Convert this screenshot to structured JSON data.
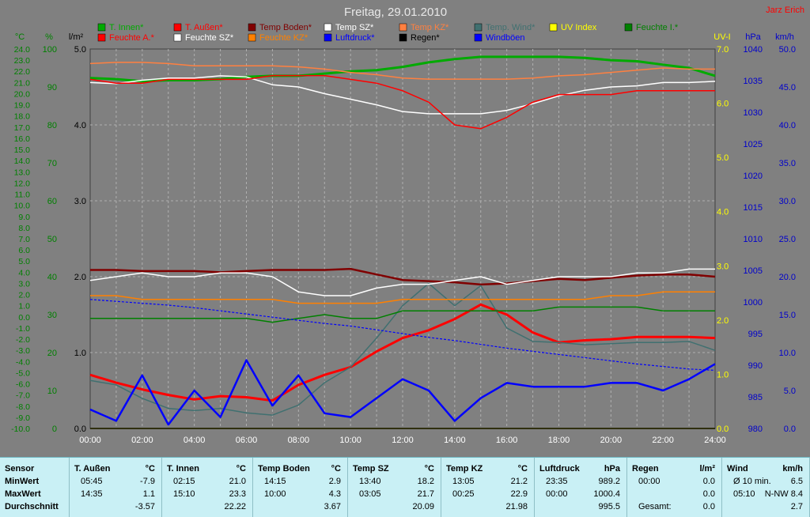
{
  "title": "Freitag, 29.01.2010",
  "author": "Jarz Erich",
  "colors": {
    "t_innen": "#00aa00",
    "t_aussen": "#ff0000",
    "temp_boden": "#800000",
    "temp_sz": "#ffffff",
    "temp_kz": "#ff8040",
    "temp_wind": "#407070",
    "uv_index": "#ffff00",
    "feuchte_i": "#008000",
    "feuchte_a": "#ff0000",
    "feuchte_sz": "#ffffff",
    "feuchte_kz": "#ff8000",
    "luftdruck": "#0000ff",
    "regen": "#000000",
    "windboeen": "#0000ff"
  },
  "legend": [
    {
      "label": "T. Innen*",
      "color": "#00aa00"
    },
    {
      "label": "T. Außen*",
      "color": "#ff0000"
    },
    {
      "label": "Temp Boden*",
      "color": "#800000"
    },
    {
      "label": "Temp SZ*",
      "color": "#ffffff"
    },
    {
      "label": "Temp KZ*",
      "color": "#ff8040"
    },
    {
      "label": "Temp. Wind*",
      "color": "#407070"
    },
    {
      "label": "UV Index",
      "color": "#ffff00"
    },
    {
      "label": "Feuchte I.*",
      "color": "#008000"
    },
    {
      "label": "Feuchte A.*",
      "color": "#ff0000"
    },
    {
      "label": "Feuchte SZ*",
      "color": "#ffffff"
    },
    {
      "label": "Feuchte KZ*",
      "color": "#ff8000"
    },
    {
      "label": "Luftdruck*",
      "color": "#0000ff"
    },
    {
      "label": "Regen*",
      "color": "#000000"
    },
    {
      "label": "Windböen",
      "color": "#0000ff"
    }
  ],
  "chart_data": {
    "type": "line",
    "title": "Freitag, 29.01.2010",
    "x": [
      "00:00",
      "01:00",
      "02:00",
      "03:00",
      "04:00",
      "05:00",
      "06:00",
      "07:00",
      "08:00",
      "09:00",
      "10:00",
      "11:00",
      "12:00",
      "13:00",
      "14:00",
      "15:00",
      "16:00",
      "17:00",
      "18:00",
      "19:00",
      "20:00",
      "21:00",
      "22:00",
      "23:00",
      "24:00"
    ],
    "x_ticks": [
      "00:00",
      "02:00",
      "04:00",
      "06:00",
      "08:00",
      "10:00",
      "12:00",
      "14:00",
      "16:00",
      "18:00",
      "20:00",
      "22:00",
      "24:00"
    ],
    "axes": {
      "temp": {
        "label": "°C",
        "range": [
          -10,
          24
        ],
        "ticks": [
          "24.0",
          "23.0",
          "22.0",
          "21.0",
          "20.0",
          "19.0",
          "18.0",
          "17.0",
          "16.0",
          "15.0",
          "14.0",
          "13.0",
          "12.0",
          "11.0",
          "10.0",
          "9.0",
          "8.0",
          "7.0",
          "6.0",
          "5.0",
          "4.0",
          "3.0",
          "2.0",
          "1.0",
          "0.0",
          "-1.0",
          "-2.0",
          "-3.0",
          "-4.0",
          "-5.0",
          "-6.0",
          "-7.0",
          "-8.0",
          "-9.0",
          "-10.0"
        ]
      },
      "humidity": {
        "label": "%",
        "range": [
          0,
          100
        ],
        "ticks": [
          "100",
          "90",
          "80",
          "70",
          "60",
          "50",
          "40",
          "30",
          "20",
          "10",
          "0"
        ]
      },
      "rain": {
        "label": "l/m²",
        "range": [
          0,
          5
        ],
        "ticks": [
          "5.0",
          "4.0",
          "3.0",
          "2.0",
          "1.0",
          "0.0"
        ]
      },
      "uv": {
        "label": "UV-I",
        "range": [
          0,
          7
        ],
        "ticks": [
          "7.0",
          "6.0",
          "5.0",
          "4.0",
          "3.0",
          "2.0",
          "1.0",
          "0.0"
        ]
      },
      "pressure": {
        "label": "hPa",
        "range": [
          980,
          1040
        ],
        "ticks": [
          "1040",
          "1035",
          "1030",
          "1025",
          "1020",
          "1015",
          "1010",
          "1005",
          "1000",
          "995",
          "990",
          "985",
          "980"
        ]
      },
      "wind": {
        "label": "km/h",
        "range": [
          0,
          50
        ],
        "ticks": [
          "50.0",
          "45.0",
          "40.0",
          "35.0",
          "30.0",
          "25.0",
          "20.0",
          "15.0",
          "10.0",
          "5.0",
          "0.0"
        ]
      }
    },
    "series": [
      {
        "name": "T. Innen*",
        "axis": "temp",
        "color": "#00aa00",
        "values": [
          21.4,
          21.3,
          21.1,
          21.2,
          21.2,
          21.3,
          21.5,
          21.6,
          21.6,
          21.8,
          22.0,
          22.1,
          22.4,
          22.8,
          23.1,
          23.3,
          23.3,
          23.3,
          23.3,
          23.2,
          23.0,
          22.9,
          22.6,
          22.3,
          21.6
        ]
      },
      {
        "name": "T. Außen*",
        "axis": "temp",
        "color": "#ff0000",
        "values": [
          -5.2,
          -5.9,
          -6.5,
          -7.0,
          -7.4,
          -7.1,
          -7.2,
          -7.5,
          -6.1,
          -5.2,
          -4.5,
          -3.1,
          -1.9,
          -1.2,
          -0.2,
          1.1,
          0.2,
          -1.4,
          -2.3,
          -2.1,
          -2.0,
          -1.8,
          -1.8,
          -1.8,
          -1.9
        ]
      },
      {
        "name": "Temp Boden*",
        "axis": "temp",
        "color": "#800000",
        "values": [
          4.2,
          4.2,
          4.1,
          4.1,
          4.1,
          4.0,
          4.1,
          4.2,
          4.2,
          4.2,
          4.3,
          3.8,
          3.3,
          3.2,
          3.1,
          2.9,
          3.0,
          3.2,
          3.4,
          3.3,
          3.5,
          3.7,
          3.8,
          3.8,
          3.6
        ]
      },
      {
        "name": "Temp SZ*",
        "axis": "temp",
        "color": "#ffffff",
        "values": [
          21.0,
          20.9,
          21.2,
          21.4,
          21.4,
          21.6,
          21.5,
          20.8,
          20.6,
          20.0,
          19.5,
          19.0,
          18.4,
          18.2,
          18.2,
          18.2,
          18.5,
          19.1,
          19.8,
          20.3,
          20.6,
          20.7,
          21.0,
          21.0,
          21.1
        ]
      },
      {
        "name": "Temp KZ*",
        "axis": "temp",
        "color": "#ff8040",
        "values": [
          22.7,
          22.8,
          22.8,
          22.7,
          22.5,
          22.5,
          22.5,
          22.5,
          22.4,
          22.2,
          21.9,
          21.7,
          21.4,
          21.3,
          21.3,
          21.3,
          21.3,
          21.4,
          21.6,
          21.7,
          21.9,
          22.1,
          22.3,
          22.2,
          22.2
        ]
      },
      {
        "name": "Temp. Wind*",
        "axis": "temp",
        "color": "#407070",
        "values": [
          -5.7,
          -6.1,
          -7.3,
          -8.2,
          -8.4,
          -8.2,
          -8.6,
          -8.8,
          -7.9,
          -5.9,
          -4.5,
          -1.9,
          1.0,
          3.0,
          1.0,
          2.8,
          -1.0,
          -2.2,
          -2.3,
          -2.5,
          -2.4,
          -2.3,
          -2.3,
          -2.2,
          -3.0
        ]
      },
      {
        "name": "UV Index",
        "axis": "uv",
        "color": "#ffff00",
        "values": [
          0,
          0,
          0,
          0,
          0,
          0,
          0,
          0,
          0,
          0,
          0,
          0,
          0,
          0,
          0,
          0,
          0,
          0,
          0,
          0,
          0,
          0,
          0,
          0,
          0
        ]
      },
      {
        "name": "Feuchte I.*",
        "axis": "humidity",
        "color": "#008000",
        "values": [
          29,
          29,
          29,
          29,
          29,
          29,
          29,
          28,
          29,
          30,
          29,
          29,
          31,
          31,
          31,
          31,
          31,
          31,
          32,
          32,
          32,
          32,
          31,
          31,
          31
        ]
      },
      {
        "name": "Feuchte A.*",
        "axis": "humidity",
        "color": "#ff0000",
        "values": [
          92,
          91,
          91,
          92,
          92,
          92,
          92,
          93,
          93,
          93,
          92,
          91,
          89,
          86,
          80,
          79,
          82,
          86,
          88,
          88,
          88,
          89,
          89,
          89,
          89
        ]
      },
      {
        "name": "Feuchte SZ*",
        "axis": "humidity",
        "color": "#ffffff",
        "values": [
          39,
          40,
          41,
          40,
          40,
          41,
          41,
          40,
          36,
          35,
          35,
          37,
          38,
          38,
          39,
          40,
          38,
          39,
          40,
          40,
          40,
          41,
          41,
          42,
          42
        ]
      },
      {
        "name": "Feuchte KZ*",
        "axis": "humidity",
        "color": "#ff8000",
        "values": [
          35,
          35,
          34,
          34,
          34,
          34,
          34,
          34,
          33,
          33,
          33,
          33,
          34,
          34,
          34,
          34,
          34,
          34,
          34,
          34,
          35,
          35,
          36,
          36,
          36
        ]
      },
      {
        "name": "Luftdruck*",
        "axis": "pressure",
        "color": "#0000ff",
        "values": [
          1000.4,
          1000.1,
          999.8,
          999.5,
          999.1,
          998.6,
          998.1,
          997.6,
          997.1,
          996.6,
          996.2,
          995.6,
          995.0,
          994.4,
          993.9,
          993.3,
          992.7,
          992.2,
          991.7,
          991.2,
          990.7,
          990.2,
          989.8,
          989.4,
          989.2
        ]
      },
      {
        "name": "Regen*",
        "axis": "rain",
        "color": "#000000",
        "values": [
          0,
          0,
          0,
          0,
          0,
          0,
          0,
          0,
          0,
          0,
          0,
          0,
          0,
          0,
          0,
          0,
          0,
          0,
          0,
          0,
          0,
          0,
          0,
          0,
          0
        ]
      },
      {
        "name": "Windböen",
        "axis": "wind",
        "color": "#0000ff",
        "values": [
          2.5,
          1.0,
          7.0,
          0.5,
          5.0,
          1.5,
          9.0,
          3.0,
          7.0,
          2.0,
          1.5,
          4.0,
          6.5,
          5.0,
          1.0,
          4.0,
          6.0,
          5.5,
          5.5,
          5.5,
          6.0,
          6.0,
          5.0,
          6.5,
          8.5
        ]
      }
    ]
  },
  "stats": {
    "row_labels": [
      "Sensor",
      "MinWert",
      "MaxWert",
      "Durchschnitt"
    ],
    "columns": [
      {
        "name": "T. Außen",
        "unit": "°C",
        "min_time": "05:45",
        "min": "-7.9",
        "max_time": "14:35",
        "max": "1.1",
        "avg": "-3.57"
      },
      {
        "name": "T. Innen",
        "unit": "°C",
        "min_time": "02:15",
        "min": "21.0",
        "max_time": "15:10",
        "max": "23.3",
        "avg": "22.22"
      },
      {
        "name": "Temp Boden",
        "unit": "°C",
        "min_time": "14:15",
        "min": "2.9",
        "max_time": "10:00",
        "max": "4.3",
        "avg": "3.67"
      },
      {
        "name": "Temp SZ",
        "unit": "°C",
        "min_time": "13:40",
        "min": "18.2",
        "max_time": "03:05",
        "max": "21.7",
        "avg": "20.09"
      },
      {
        "name": "Temp KZ",
        "unit": "°C",
        "min_time": "13:05",
        "min": "21.2",
        "max_time": "00:25",
        "max": "22.9",
        "avg": "21.98"
      },
      {
        "name": "Luftdruck",
        "unit": "hPa",
        "min_time": "23:35",
        "min": "989.2",
        "max_time": "00:00",
        "max": "1000.4",
        "avg": "995.5"
      },
      {
        "name": "Regen",
        "unit": "l/m²",
        "min_time": "00:00",
        "min": "0.0",
        "max_time": "",
        "max": "0.0",
        "avg_label": "Gesamt:",
        "avg": "0.0"
      },
      {
        "name": "Wind",
        "unit": "km/h",
        "min_time": "Ø 10 min.",
        "min": "6.5",
        "max_time": "05:10",
        "max": "N-NW 8.4",
        "avg": "2.7"
      }
    ]
  }
}
